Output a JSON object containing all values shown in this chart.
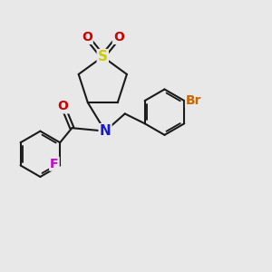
{
  "bg_color": "#e8e8e8",
  "bond_color": "#1a1a1a",
  "bond_width": 1.5,
  "atom_labels": {
    "S": {
      "color": "#cccc00",
      "fontsize": 11
    },
    "N": {
      "color": "#1a1acc",
      "fontsize": 11
    },
    "O": {
      "color": "#cc0000",
      "fontsize": 10
    },
    "F": {
      "color": "#cc00cc",
      "fontsize": 10
    },
    "Br": {
      "color": "#cc6600",
      "fontsize": 10
    }
  },
  "xlim": [
    1.0,
    9.5
  ],
  "ylim": [
    1.5,
    9.5
  ]
}
